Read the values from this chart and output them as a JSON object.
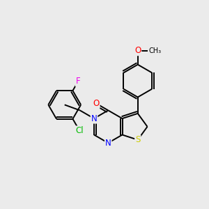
{
  "background_color": "#ebebeb",
  "bond_color": "#000000",
  "atom_colors": {
    "N": "#0000ff",
    "O": "#ff0000",
    "S": "#cccc00",
    "Cl": "#00bb00",
    "F": "#ee00ee",
    "C": "#000000"
  },
  "font_size": 8.5,
  "figsize": [
    3.0,
    3.0
  ],
  "dpi": 100,
  "lw": 1.4
}
